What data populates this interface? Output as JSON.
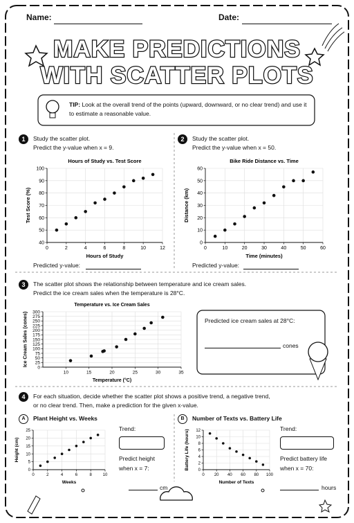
{
  "header": {
    "name": "Name:",
    "date": "Date:"
  },
  "title": {
    "line1": "MAKE PREDICTIONS",
    "line2": "WITH SCATTER PLOTS"
  },
  "tip": {
    "label": "TIP:",
    "text": "Look at the overall trend of the points (upward, downward, or no clear trend) and use it to estimate a reasonable value."
  },
  "questions": [
    {
      "number": "1",
      "lines": [
        "Study the scatter plot.",
        "Predict the y-value when x = 9."
      ],
      "answer": "Predicted y-value:"
    },
    {
      "number": "2",
      "lines": [
        "Study the scatter plot.",
        "Predict the y-value when x = 50."
      ],
      "answer": "Predicted y-value:"
    },
    {
      "number": "3",
      "lines": [
        "The scatter plot shows the relationship between temperature and ice cream sales.",
        "Predict the ice cream sales when the temperature is 28°C."
      ],
      "prompt": "Predicted ice cream sales at 28°C:",
      "unit": "cones"
    },
    {
      "number": "4",
      "lines": [
        "For each situation, decide whether the scatter plot shows a positive trend, a negative trend,",
        "or no clear trend. Then, make a prediction for the given x-value."
      ],
      "parts": [
        {
          "letter": "A",
          "trend": "Trend:",
          "prompt": [
            "Predict height",
            "when x = 7:"
          ],
          "unit": "cm"
        },
        {
          "letter": "B",
          "trend": "Trend:",
          "prompt": [
            "Predict battery life",
            "when x = 70:"
          ],
          "unit": "hours"
        }
      ]
    }
  ],
  "chart_data": [
    {
      "type": "scatter",
      "title": "Hours of Study vs. Test Score",
      "x_label": "Hours of Study",
      "y_label": "Test Score (%)",
      "x": [
        1,
        2,
        3,
        4,
        5,
        6,
        7,
        8,
        9,
        10,
        11
      ],
      "values": [
        50,
        55,
        60,
        65,
        72,
        75,
        80,
        85,
        90,
        92,
        95
      ],
      "xlim": [
        0,
        12
      ],
      "xticks": [
        0,
        2,
        4,
        6,
        8,
        10,
        12
      ],
      "ylim": [
        40,
        100
      ],
      "yticks": [
        40,
        50,
        60,
        70,
        80,
        90,
        100
      ],
      "grid": true,
      "color": "#111111"
    },
    {
      "type": "scatter",
      "title": "Bike Ride Distance vs. Time",
      "x_label": "Time (minutes)",
      "y_label": "Distance (km)",
      "x": [
        5,
        10,
        15,
        20,
        25,
        30,
        35,
        40,
        45,
        50,
        55
      ],
      "values": [
        5,
        10,
        15,
        21,
        28,
        32,
        38,
        45,
        50,
        50,
        57
      ],
      "xlim": [
        0,
        60
      ],
      "xticks": [
        0,
        10,
        20,
        30,
        40,
        50,
        60
      ],
      "ylim": [
        0,
        60
      ],
      "yticks": [
        0,
        10,
        20,
        30,
        40,
        50,
        60
      ],
      "grid": true,
      "color": "#111111"
    },
    {
      "type": "scatter",
      "title": "Temperature vs. Ice Cream Sales",
      "x_label": "Temperature (°C)",
      "y_label": "Ice Cream Sales (cones)",
      "x": [
        11,
        15.5,
        18,
        18.3,
        21,
        23,
        25,
        27,
        28.5,
        31
      ],
      "values": [
        35,
        60,
        85,
        88,
        110,
        150,
        180,
        210,
        240,
        270
      ],
      "xlim": [
        5,
        35
      ],
      "xticks": [
        10,
        15,
        20,
        25,
        30,
        35
      ],
      "ylim": [
        0,
        300
      ],
      "yticks": [
        0,
        25,
        50,
        75,
        100,
        125,
        150,
        175,
        200,
        225,
        250,
        275,
        300
      ],
      "grid": true,
      "color": "#111111"
    },
    {
      "type": "scatter",
      "title": "Plant Height vs. Weeks",
      "x_label": "Weeks",
      "y_label": "Height (cm)",
      "x": [
        1,
        2,
        3,
        4,
        5,
        6,
        7,
        8,
        9
      ],
      "values": [
        2.5,
        5,
        7.5,
        10,
        12.5,
        15,
        17.5,
        20,
        22
      ],
      "xlim": [
        0,
        10
      ],
      "xticks": [
        0,
        2,
        4,
        6,
        8,
        10
      ],
      "ylim": [
        0,
        25
      ],
      "yticks": [
        0,
        5,
        10,
        15,
        20,
        25
      ],
      "grid": true,
      "color": "#111111"
    },
    {
      "type": "scatter",
      "title": "Number of Texts vs. Battery Life",
      "x_label": "Number of Texts",
      "y_label": "Battery Life (hours)",
      "x": [
        10,
        20,
        30,
        40,
        50,
        60,
        70,
        80,
        90
      ],
      "values": [
        11,
        9.5,
        8,
        6.5,
        5.5,
        4.5,
        3.5,
        2.5,
        1.5
      ],
      "xlim": [
        0,
        100
      ],
      "xticks": [
        0,
        20,
        40,
        60,
        80,
        100
      ],
      "ylim": [
        0,
        12
      ],
      "yticks": [
        0,
        2,
        4,
        6,
        8,
        10,
        12
      ],
      "grid": true,
      "color": "#111111"
    }
  ]
}
